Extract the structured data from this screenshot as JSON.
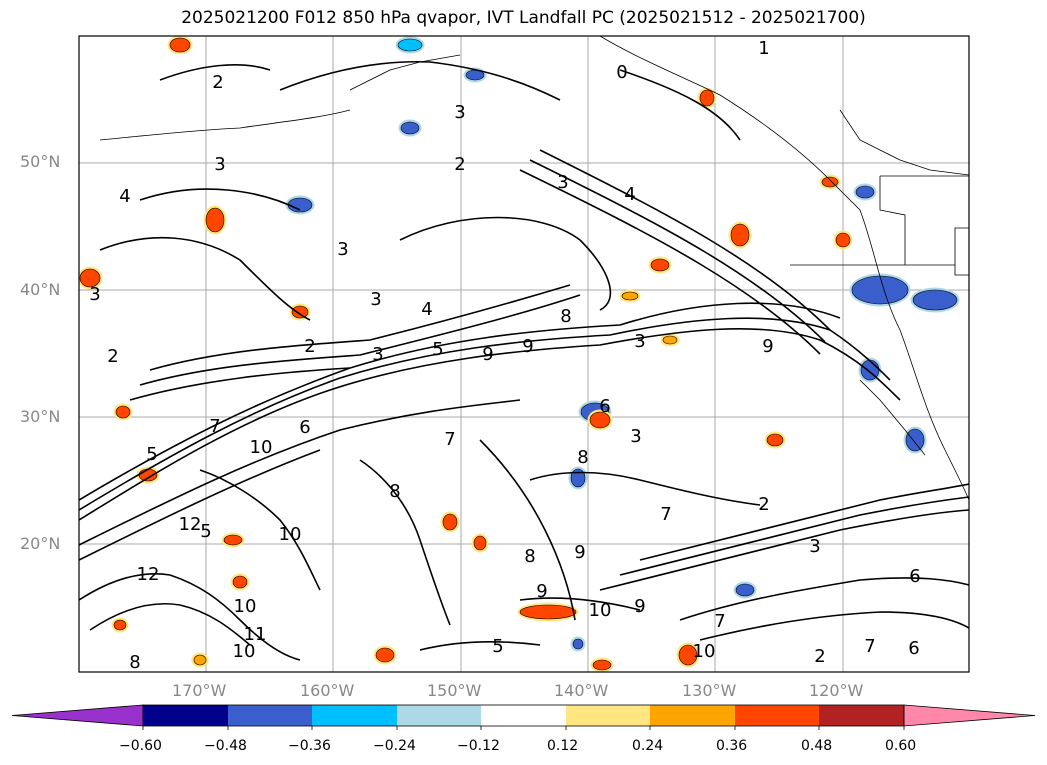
{
  "title": "2025021200 F012 850 hPa qvapor, IVT Landfall PC (2025021512 - 2025021700)",
  "lat_labels": [
    "50°N",
    "40°N",
    "30°N",
    "20°N"
  ],
  "lon_labels": [
    "170°W",
    "160°W",
    "150°W",
    "140°W",
    "130°W",
    "120°W"
  ],
  "colorbar": {
    "ticks": [
      "−0.60",
      "−0.48",
      "−0.36",
      "−0.24",
      "−0.12",
      "0.12",
      "0.24",
      "0.36",
      "0.48",
      "0.60"
    ],
    "colors": [
      "#9932cc",
      "#00008b",
      "#3a5fcd",
      "#00bfff",
      "#add8e6",
      "#ffffff",
      "#ffe680",
      "#ffa500",
      "#ff4500",
      "#b22222",
      "#ff88aa"
    ]
  },
  "contour_labels": [
    "1",
    "0",
    "2",
    "3",
    "4",
    "3",
    "2",
    "3",
    "3",
    "4",
    "4",
    "3",
    "3",
    "3",
    "2",
    "5",
    "9",
    "9",
    "2",
    "3",
    "3",
    "8",
    "9",
    "7",
    "6",
    "10",
    "7",
    "5",
    "5",
    "10",
    "8",
    "8",
    "2",
    "3",
    "5",
    "2",
    "7",
    "6",
    "10",
    "9",
    "9",
    "10",
    "12",
    "12",
    "11",
    "10",
    "6",
    "8",
    "7",
    "9",
    "6",
    "7",
    "8",
    "10"
  ]
}
